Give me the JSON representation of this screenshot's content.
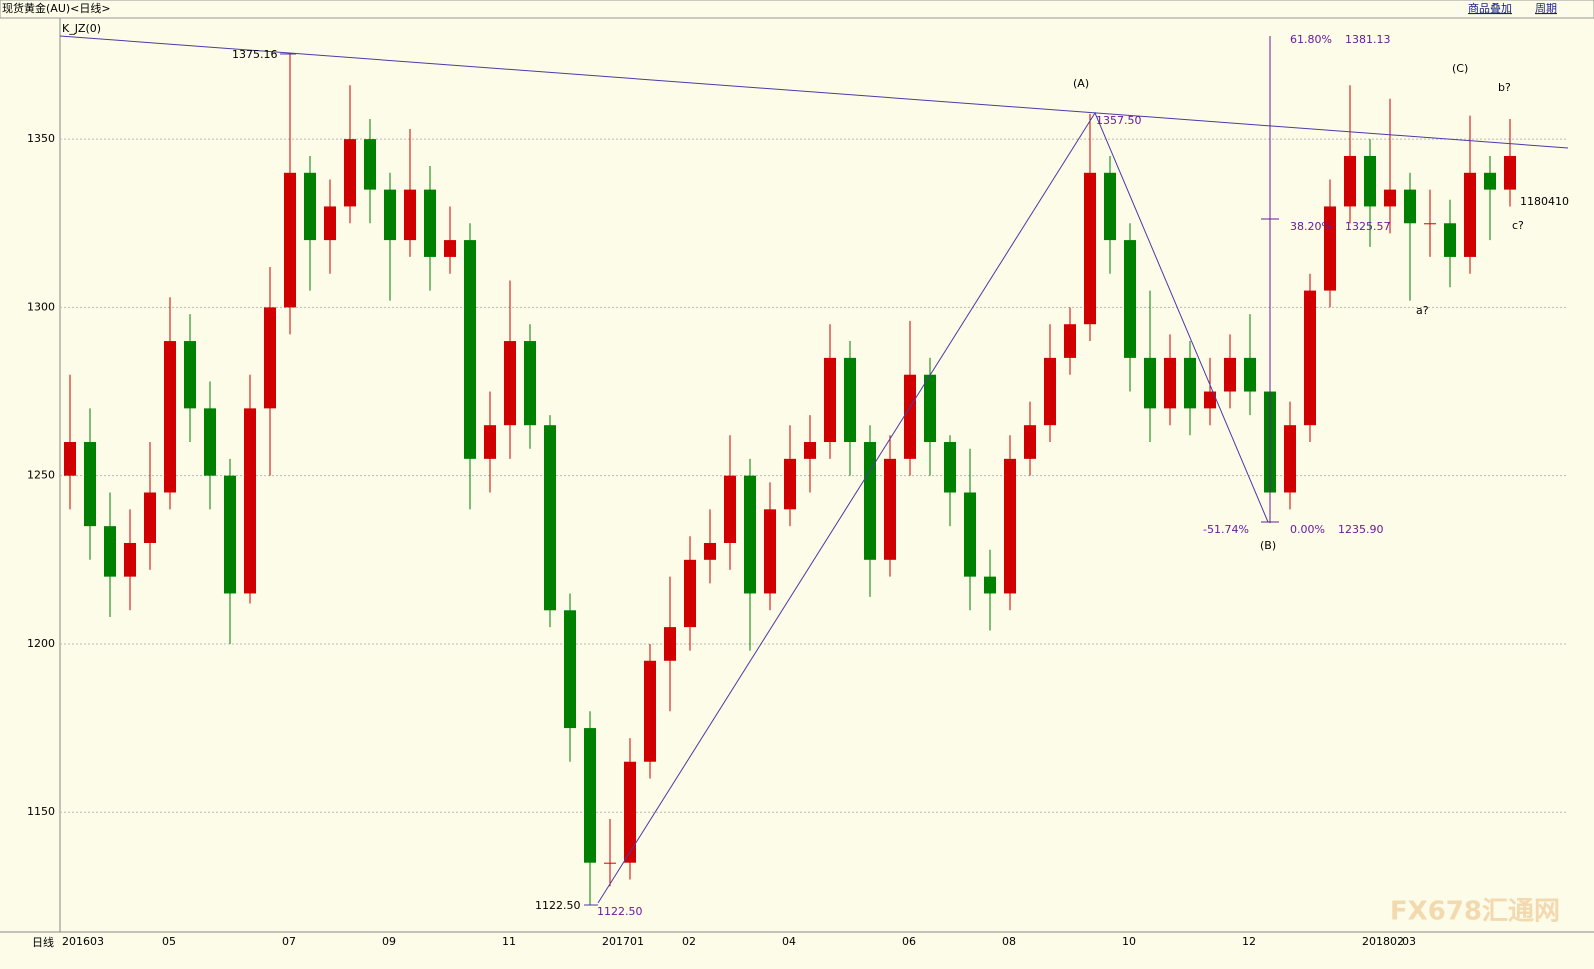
{
  "header": {
    "title": "现货黄金(AU)<日线>",
    "menu": [
      "商品叠加",
      "周期"
    ]
  },
  "indicator": "K_JZ(0)",
  "period_label": "日线",
  "watermark": "FX678汇通网",
  "chart_data": {
    "type": "candlestick",
    "categories": [
      "201603",
      null,
      null,
      null,
      null,
      "05",
      null,
      null,
      null,
      null,
      null,
      "07",
      null,
      null,
      null,
      null,
      "09",
      null,
      null,
      null,
      null,
      null,
      "11",
      null,
      null,
      null,
      null,
      "201701",
      null,
      null,
      null,
      "02",
      null,
      null,
      null,
      null,
      "04",
      null,
      null,
      null,
      null,
      null,
      "06",
      null,
      null,
      null,
      null,
      "08",
      null,
      null,
      null,
      null,
      null,
      "10",
      null,
      null,
      null,
      null,
      null,
      "12",
      null,
      null,
      null,
      null,
      null,
      "201802",
      null,
      "03",
      null,
      null,
      null,
      null,
      null
    ],
    "open": [
      1250,
      1260,
      1235,
      1220,
      1230,
      1245,
      1290,
      1270,
      1250,
      1215,
      1270,
      1300,
      1340,
      1320,
      1330,
      1350,
      1335,
      1320,
      1335,
      1315,
      1320,
      1255,
      1265,
      1290,
      1265,
      1210,
      1175,
      1135,
      1135,
      1165,
      1195,
      1205,
      1225,
      1230,
      1250,
      1215,
      1240,
      1255,
      1260,
      1285,
      1260,
      1225,
      1255,
      1280,
      1260,
      1245,
      1220,
      1215,
      1255,
      1265,
      1285,
      1295,
      1340,
      1320,
      1285,
      1270,
      1285,
      1270,
      1275,
      1285,
      1275,
      1245,
      1265,
      1305,
      1330,
      1345,
      1330,
      1335,
      1325,
      1325,
      1315,
      1340,
      1335
    ],
    "high": [
      1280,
      1270,
      1245,
      1240,
      1260,
      1303,
      1298,
      1278,
      1255,
      1280,
      1312,
      1375.16,
      1345,
      1338,
      1366,
      1356,
      1340,
      1353,
      1342,
      1330,
      1325,
      1275,
      1308,
      1295,
      1268,
      1215,
      1180,
      1148,
      1172,
      1200,
      1220,
      1232,
      1240,
      1262,
      1255,
      1248,
      1265,
      1268,
      1295,
      1290,
      1265,
      1262,
      1296,
      1285,
      1262,
      1258,
      1228,
      1262,
      1272,
      1295,
      1300,
      1357.5,
      1345,
      1325,
      1305,
      1292,
      1290,
      1285,
      1292,
      1298,
      1280,
      1272,
      1310,
      1338,
      1366,
      1350,
      1362,
      1340,
      1335,
      1332,
      1357,
      1345,
      1356
    ],
    "low": [
      1240,
      1225,
      1208,
      1210,
      1222,
      1240,
      1260,
      1240,
      1200,
      1212,
      1250,
      1292,
      1305,
      1310,
      1325,
      1325,
      1302,
      1315,
      1305,
      1310,
      1240,
      1245,
      1255,
      1258,
      1205,
      1165,
      1122.5,
      1128,
      1130,
      1160,
      1180,
      1198,
      1218,
      1222,
      1198,
      1210,
      1235,
      1245,
      1255,
      1250,
      1214,
      1220,
      1250,
      1250,
      1235,
      1210,
      1204,
      1210,
      1250,
      1260,
      1280,
      1290,
      1310,
      1275,
      1260,
      1265,
      1262,
      1265,
      1270,
      1268,
      1235.9,
      1240,
      1260,
      1300,
      1325,
      1318,
      1322,
      1302,
      1315,
      1306,
      1310,
      1320,
      1330
    ],
    "close": [
      1260,
      1235,
      1220,
      1230,
      1245,
      1290,
      1270,
      1250,
      1215,
      1270,
      1300,
      1340,
      1320,
      1330,
      1350,
      1335,
      1320,
      1335,
      1315,
      1320,
      1255,
      1265,
      1290,
      1265,
      1210,
      1175,
      1135,
      1135,
      1165,
      1195,
      1205,
      1225,
      1230,
      1250,
      1215,
      1240,
      1255,
      1260,
      1285,
      1260,
      1225,
      1255,
      1280,
      1260,
      1245,
      1220,
      1215,
      1255,
      1265,
      1285,
      1295,
      1340,
      1320,
      1285,
      1270,
      1285,
      1270,
      1275,
      1285,
      1275,
      1245,
      1265,
      1305,
      1330,
      1345,
      1330,
      1335,
      1325,
      1325,
      1315,
      1340,
      1335,
      1345
    ],
    "up_color": "#d00000",
    "down_color": "#008000",
    "ylim": [
      1115,
      1385.4
    ],
    "yticks": [
      1150,
      1200,
      1250,
      1300,
      1350
    ],
    "grid": true,
    "annotations": [
      "1375.16",
      "(A)",
      "1357.50",
      "61.80%",
      "1381.13",
      "(C)",
      "b?",
      "1180410",
      "38.20%",
      "1325.57",
      "c?",
      "a?",
      "-51.74%",
      "0.00%",
      "1235.90",
      "(B)",
      "1122.50",
      "1122.50"
    ]
  }
}
